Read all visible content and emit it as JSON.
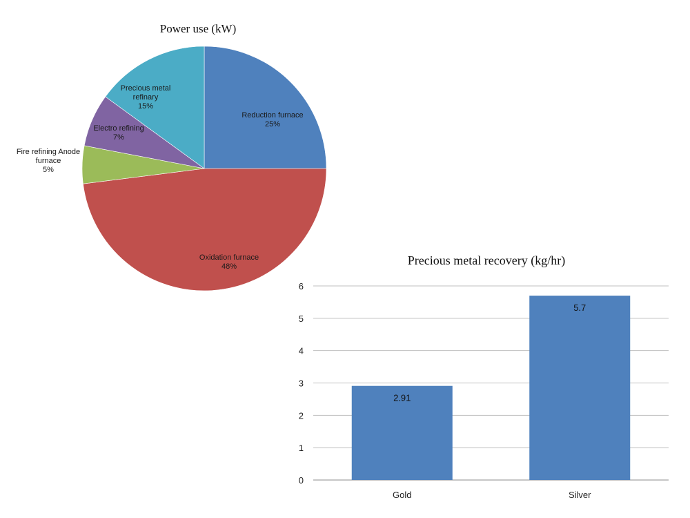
{
  "chart_data": [
    {
      "type": "pie",
      "title": "Power use (kW)",
      "slices": [
        {
          "label_lines": [
            "Reduction furnace",
            "25%"
          ],
          "value": 25,
          "color": "#4f81bd"
        },
        {
          "label_lines": [
            "Oxidation furnace",
            "48%"
          ],
          "value": 48,
          "color": "#c0504d"
        },
        {
          "label_lines": [
            "Fire refining Anode",
            "furnace",
            "5%"
          ],
          "value": 5,
          "color": "#9bbb59"
        },
        {
          "label_lines": [
            "Electro refining",
            "7%"
          ],
          "value": 7,
          "color": "#8064a2"
        },
        {
          "label_lines": [
            "Precious metal",
            "refinary",
            "15%"
          ],
          "value": 15,
          "color": "#4bacc6"
        }
      ],
      "start_angle_deg": 0,
      "direction": "clockwise"
    },
    {
      "type": "bar",
      "title": "Precious metal recovery (kg/hr)",
      "categories": [
        "Gold",
        "Silver"
      ],
      "values": [
        2.91,
        5.7
      ],
      "data_labels": [
        "2.91",
        "5.7"
      ],
      "ylim": [
        0,
        6
      ],
      "yticks": [
        0,
        1,
        2,
        3,
        4,
        5,
        6
      ],
      "grid": true,
      "bar_color": "#4f81bd"
    }
  ]
}
